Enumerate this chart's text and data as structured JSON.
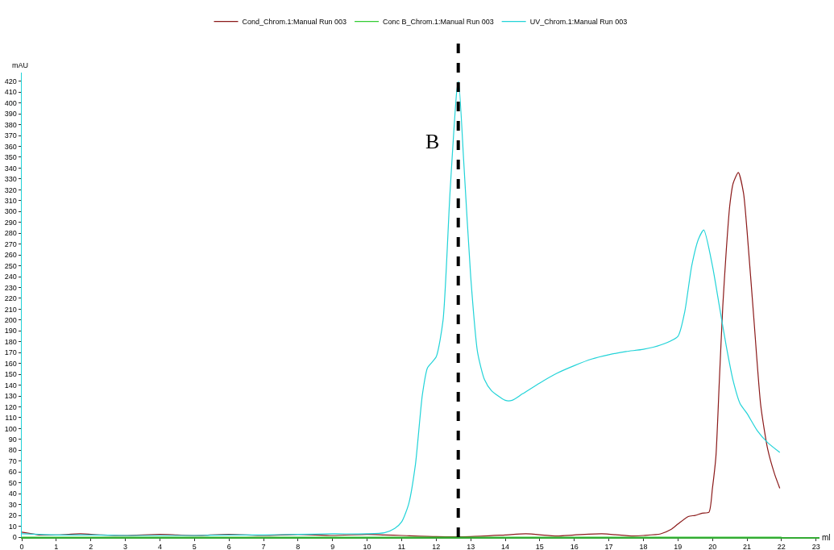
{
  "chart_data": {
    "type": "line",
    "xlabel": "ml",
    "ylabel": "mAU",
    "xlim": [
      0,
      23.1
    ],
    "ylim": [
      0,
      428
    ],
    "xticks": [
      0,
      1,
      2,
      3,
      4,
      5,
      6,
      7,
      8,
      9,
      10,
      11,
      12,
      13,
      14,
      15,
      16,
      17,
      18,
      19,
      20,
      21,
      22,
      23
    ],
    "yticks": [
      0,
      10,
      20,
      30,
      40,
      50,
      60,
      70,
      80,
      90,
      100,
      110,
      120,
      130,
      140,
      150,
      160,
      170,
      180,
      190,
      200,
      210,
      220,
      230,
      240,
      250,
      260,
      270,
      280,
      290,
      300,
      310,
      320,
      330,
      340,
      350,
      360,
      370,
      380,
      390,
      400,
      410,
      420
    ],
    "grid": false,
    "legend": "top",
    "marker": "none",
    "line_style": "solid",
    "series": [
      {
        "name": "Cond_Chrom.1:Manual Run 003",
        "color": "#8b1a1a",
        "x": [
          0,
          0.5,
          1,
          1.7,
          2.3,
          3,
          4,
          4.5,
          5,
          6,
          7,
          8,
          9,
          10,
          10.5,
          11,
          12,
          13,
          14,
          14.6,
          15.5,
          16,
          16.8,
          17.7,
          18,
          18.5,
          18.8,
          19,
          19.3,
          19.5,
          19.7,
          19.9,
          20,
          20.1,
          20.2,
          20.3,
          20.4,
          20.5,
          20.6,
          20.75,
          20.9,
          21,
          21.2,
          21.4,
          21.6,
          21.8,
          21.95
        ],
        "values": [
          4.5,
          2,
          2,
          3,
          2,
          1.5,
          2.5,
          2,
          1.5,
          2.5,
          1.5,
          2.5,
          1.5,
          2.5,
          2,
          1.5,
          0.5,
          0.5,
          2,
          3,
          1,
          2,
          3,
          1,
          1.5,
          3,
          7,
          12,
          19,
          20,
          22,
          23,
          45,
          74,
          144,
          213,
          264,
          305,
          326,
          336,
          317,
          283,
          201,
          121,
          81,
          58,
          45
        ]
      },
      {
        "name": "Conc B_Chrom.1:Manual Run 003",
        "color": "#33cc33",
        "x": [
          0,
          22
        ],
        "values": [
          0,
          0
        ]
      },
      {
        "name": "UV_Chrom.1:Manual Run 003",
        "color": "#22d3d8",
        "x": [
          0,
          1,
          2,
          3,
          4,
          5,
          6,
          7,
          8,
          9,
          10,
          10.5,
          10.8,
          11,
          11.2,
          11.4,
          11.6,
          11.75,
          12,
          12.2,
          12.4,
          12.6,
          12.65,
          12.8,
          13,
          13.2,
          13.4,
          13.6,
          14,
          14.2,
          14.5,
          15,
          15.5,
          16,
          16.5,
          17,
          17.5,
          18,
          18.5,
          19,
          19.2,
          19.4,
          19.6,
          19.75,
          20,
          20.2,
          20.4,
          20.6,
          20.8,
          21,
          21.3,
          21.6,
          21.95
        ],
        "values": [
          3,
          2,
          2,
          1.5,
          1.5,
          1.5,
          2,
          2,
          2.5,
          3,
          3,
          4,
          8,
          14,
          30,
          67,
          131,
          156,
          166,
          200,
          317,
          412,
          420,
          345,
          240,
          170,
          145,
          135,
          126,
          126,
          132,
          142,
          151,
          158,
          164,
          168,
          171,
          173,
          177,
          185,
          208,
          250,
          275,
          283,
          250,
          213,
          176,
          144,
          123,
          114,
          98,
          87,
          78
        ]
      }
    ],
    "ref_lines": [
      {
        "axis": "x",
        "value": 12.64,
        "label": "B",
        "color": "#000000",
        "line_style": "dashed"
      }
    ]
  }
}
